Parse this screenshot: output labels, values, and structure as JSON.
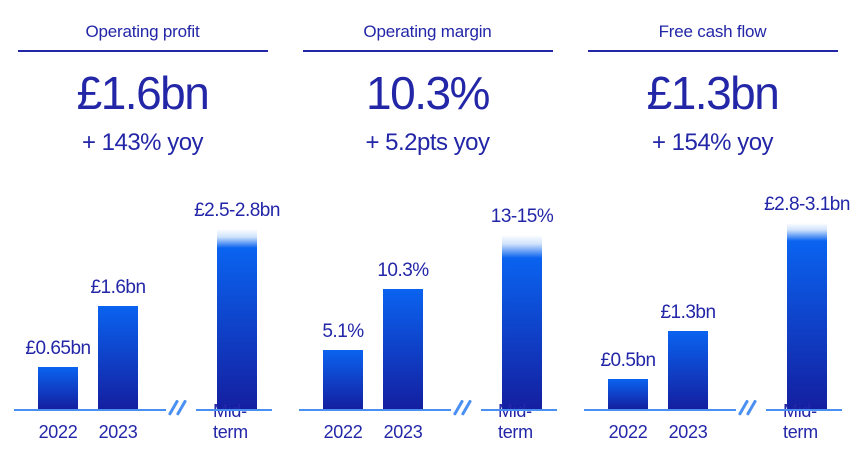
{
  "colors": {
    "text_navy": "#2226a7",
    "bar_gradient_top": "#0a63f0",
    "bar_gradient_bottom": "#141fa0",
    "axis_blue": "#4a8ff2",
    "range_fade_light": "#cfe2fc",
    "background": "#ffffff"
  },
  "panels": [
    {
      "title": "Operating profit",
      "value": "£1.6bn",
      "change": "+ 143% yoy"
    },
    {
      "title": "Operating margin",
      "value": "10.3%",
      "change": "+ 5.2pts yoy"
    },
    {
      "title": "Free cash flow",
      "value": "£1.3bn",
      "change": "+ 154% yoy"
    }
  ],
  "chart_data": [
    {
      "type": "bar",
      "title": "Operating profit",
      "unit": "£bn",
      "categories": [
        "2022",
        "2023",
        "Mid-term"
      ],
      "values": [
        0.65,
        1.6,
        [
          2.5,
          2.8
        ]
      ],
      "bar_labels": [
        "£0.65bn",
        "£1.6bn",
        "£2.5-2.8bn"
      ],
      "ylim": [
        0,
        2.9
      ],
      "axis_break_before": "Mid-term",
      "range_style": "fade-to-white-top",
      "grid": false,
      "legend": false
    },
    {
      "type": "bar",
      "title": "Operating margin",
      "unit": "%",
      "categories": [
        "2022",
        "2023",
        "Mid-term"
      ],
      "values": [
        5.1,
        10.3,
        [
          13,
          15
        ]
      ],
      "bar_labels": [
        "5.1%",
        "10.3%",
        "13-15%"
      ],
      "ylim": [
        0,
        16
      ],
      "axis_break_before": "Mid-term",
      "range_style": "fade-to-white-top",
      "grid": false,
      "legend": false
    },
    {
      "type": "bar",
      "title": "Free cash flow",
      "unit": "£bn",
      "categories": [
        "2022",
        "2023",
        "Mid-term"
      ],
      "values": [
        0.5,
        1.3,
        [
          2.8,
          3.1
        ]
      ],
      "bar_labels": [
        "£0.5bn",
        "£1.3bn",
        "£2.8-3.1bn"
      ],
      "ylim": [
        0,
        3.1
      ],
      "axis_break_before": "Mid-term",
      "range_style": "fade-to-white-top",
      "grid": false,
      "legend": false
    }
  ]
}
